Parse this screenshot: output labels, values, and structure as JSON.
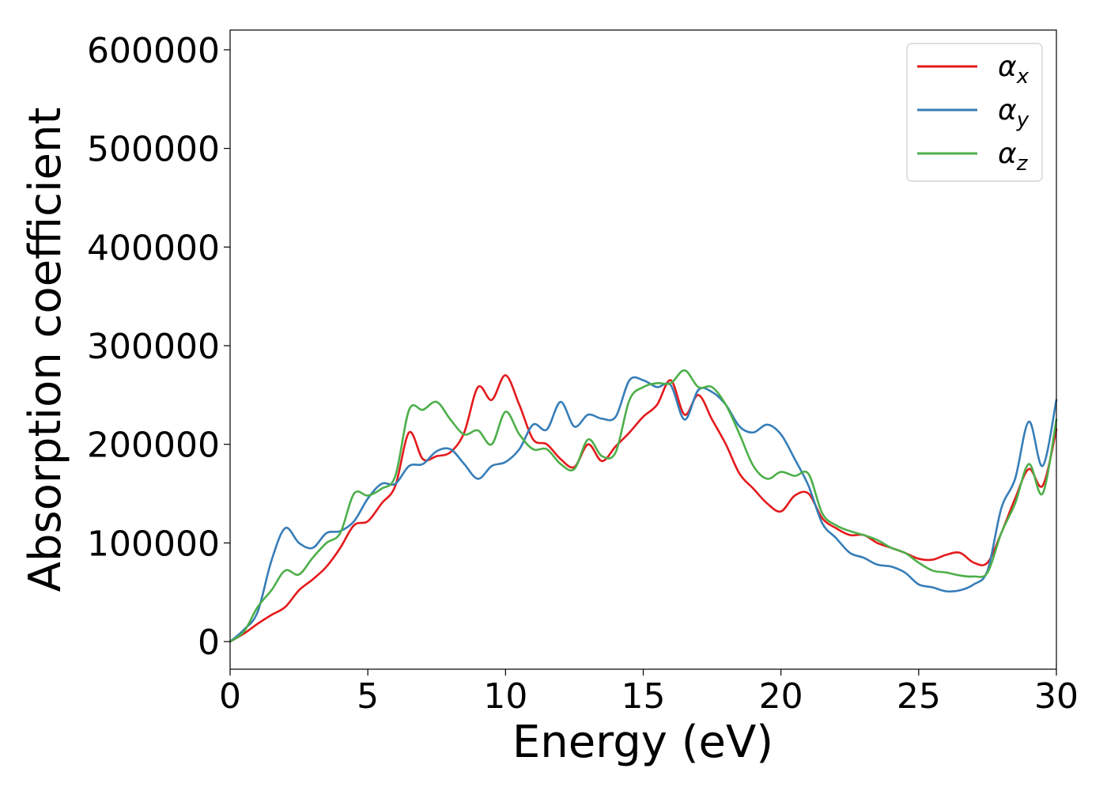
{
  "chart_data": {
    "type": "line",
    "xlabel": "Energy (eV)",
    "ylabel": "Absorption coefficient",
    "xlim": [
      0,
      30
    ],
    "ylim": [
      -28000,
      620000
    ],
    "xticks": [
      0,
      5,
      10,
      15,
      20,
      25,
      30
    ],
    "xtick_labels": [
      "0",
      "5",
      "10",
      "15",
      "20",
      "25",
      "30"
    ],
    "yticks": [
      0,
      100000,
      200000,
      300000,
      400000,
      500000,
      600000
    ],
    "ytick_labels": [
      "0",
      "100000",
      "200000",
      "300000",
      "400000",
      "500000",
      "600000"
    ],
    "grid": false,
    "legend_position": "top-right",
    "x": [
      0,
      0.5,
      1,
      1.5,
      2,
      2.5,
      3,
      3.5,
      4,
      4.5,
      5,
      5.5,
      6,
      6.5,
      7,
      7.5,
      8,
      8.5,
      9,
      9.5,
      10,
      10.5,
      11,
      11.5,
      12,
      12.5,
      13,
      13.5,
      14,
      14.5,
      15,
      15.5,
      16,
      16.5,
      17,
      17.5,
      18,
      18.5,
      19,
      19.5,
      20,
      20.5,
      21,
      21.5,
      22,
      22.5,
      23,
      23.5,
      24,
      24.5,
      25,
      25.5,
      26,
      26.5,
      27,
      27.5,
      28,
      28.5,
      29,
      29.5,
      30
    ],
    "series": [
      {
        "name": "α",
        "sub": "x",
        "color": "#e41a1c",
        "values": [
          0,
          8000,
          18000,
          27000,
          35000,
          52000,
          63000,
          76000,
          95000,
          118000,
          122000,
          140000,
          158000,
          212000,
          185000,
          188000,
          192000,
          212000,
          258000,
          245000,
          270000,
          240000,
          205000,
          200000,
          185000,
          177000,
          200000,
          183000,
          198000,
          212000,
          228000,
          240000,
          265000,
          230000,
          250000,
          225000,
          200000,
          170000,
          155000,
          140000,
          132000,
          148000,
          150000,
          125000,
          115000,
          108000,
          108000,
          100000,
          95000,
          90000,
          84000,
          83000,
          88000,
          90000,
          80000,
          80000,
          110000,
          145000,
          175000,
          158000,
          215000
        ]
      },
      {
        "name": "α",
        "sub": "y",
        "color": "#377eb8",
        "values": [
          0,
          12000,
          30000,
          82000,
          115000,
          100000,
          95000,
          110000,
          112000,
          122000,
          145000,
          160000,
          160000,
          178000,
          180000,
          193000,
          195000,
          180000,
          165000,
          178000,
          182000,
          195000,
          220000,
          215000,
          243000,
          218000,
          230000,
          226000,
          228000,
          265000,
          265000,
          258000,
          260000,
          225000,
          255000,
          253000,
          240000,
          218000,
          212000,
          220000,
          210000,
          185000,
          158000,
          120000,
          105000,
          90000,
          85000,
          78000,
          76000,
          70000,
          58000,
          55000,
          51000,
          52000,
          58000,
          72000,
          135000,
          165000,
          223000,
          178000,
          245000
        ]
      },
      {
        "name": "α",
        "sub": "z",
        "color": "#4daf4a",
        "values": [
          0,
          10000,
          35000,
          52000,
          72000,
          68000,
          85000,
          100000,
          110000,
          150000,
          148000,
          155000,
          168000,
          235000,
          235000,
          243000,
          225000,
          210000,
          214000,
          200000,
          233000,
          210000,
          195000,
          195000,
          180000,
          175000,
          205000,
          188000,
          192000,
          245000,
          258000,
          262000,
          262000,
          275000,
          258000,
          258000,
          240000,
          210000,
          178000,
          165000,
          172000,
          168000,
          170000,
          130000,
          118000,
          112000,
          108000,
          103000,
          95000,
          90000,
          80000,
          72000,
          70000,
          67000,
          66000,
          70000,
          110000,
          140000,
          180000,
          150000,
          225000
        ]
      }
    ]
  }
}
